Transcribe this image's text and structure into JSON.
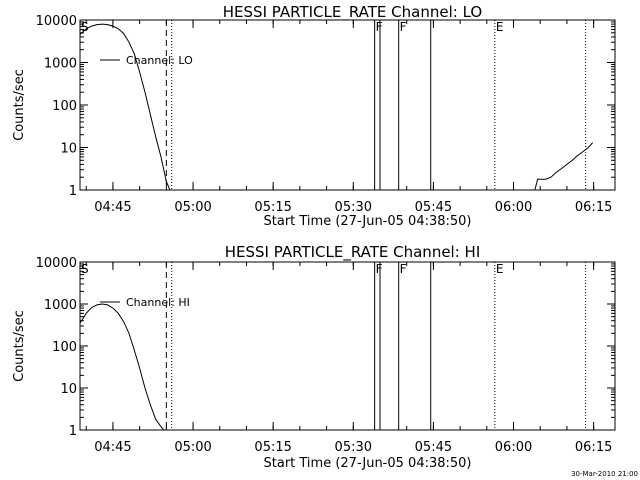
{
  "chart_data": [
    {
      "type": "line",
      "title": "HESSI PARTICLE_RATE Channel: LO",
      "xlabel": "Start Time (27-Jun-05 04:38:50)",
      "ylabel": "Counts/sec",
      "yscale": "log",
      "ylim": [
        1,
        10000
      ],
      "xlim": [
        "04:38:50",
        "06:19:00"
      ],
      "x_ticks": [
        "04:45",
        "05:00",
        "05:15",
        "05:30",
        "05:45",
        "06:00",
        "06:15"
      ],
      "y_ticks": [
        "1",
        "10",
        "100",
        "1000",
        "10000"
      ],
      "legend": {
        "position": "top-left",
        "entries": [
          "Channel: LO"
        ]
      },
      "series": [
        {
          "name": "Channel: LO",
          "color": "#000000",
          "segments": [
            {
              "x": [
                "04:38:50",
                "04:40:00",
                "04:41:00",
                "04:42:00",
                "04:43:00",
                "04:44:00",
                "04:45:00",
                "04:46:00",
                "04:47:00",
                "04:48:00",
                "04:49:00",
                "04:50:00",
                "04:51:00",
                "04:52:00",
                "04:53:00",
                "04:54:00",
                "04:55:00",
                "04:55:40"
              ],
              "y": [
                4500,
                6200,
                7200,
                7800,
                8000,
                7800,
                7200,
                6200,
                4800,
                3000,
                1600,
                600,
                200,
                60,
                18,
                6,
                1.6,
                1
              ]
            },
            {
              "x": [
                "06:04:00",
                "06:04:30",
                "06:05:00",
                "06:06:00",
                "06:07:00",
                "06:08:00",
                "06:09:00",
                "06:10:00",
                "06:11:00",
                "06:12:00",
                "06:13:00",
                "06:14:00",
                "06:14:50"
              ],
              "y": [
                1,
                1.8,
                1.8,
                1.8,
                2.0,
                2.6,
                3.2,
                4.0,
                5.0,
                6.5,
                8.0,
                10,
                13
              ]
            }
          ]
        }
      ],
      "vertical_markers": [
        {
          "time": "04:38:50",
          "style": "dotted",
          "label": "S"
        },
        {
          "time": "04:55:00",
          "style": "dashed",
          "label": ""
        },
        {
          "time": "04:56:00",
          "style": "dotted",
          "label": ""
        },
        {
          "time": "05:34:00",
          "style": "solid",
          "label": "F"
        },
        {
          "time": "05:35:00",
          "style": "solid",
          "label": ""
        },
        {
          "time": "05:38:30",
          "style": "solid",
          "label": "F"
        },
        {
          "time": "05:44:30",
          "style": "solid",
          "label": ""
        },
        {
          "time": "05:56:30",
          "style": "dotted",
          "label": "E"
        },
        {
          "time": "06:13:30",
          "style": "dotted",
          "label": ""
        }
      ]
    },
    {
      "type": "line",
      "title": "HESSI PARTICLE_RATE Channel: HI",
      "xlabel": "Start Time (27-Jun-05 04:38:50)",
      "ylabel": "Counts/sec",
      "yscale": "log",
      "ylim": [
        1,
        10000
      ],
      "xlim": [
        "04:38:50",
        "06:19:00"
      ],
      "x_ticks": [
        "04:45",
        "05:00",
        "05:15",
        "05:30",
        "05:45",
        "06:00",
        "06:15"
      ],
      "y_ticks": [
        "1",
        "10",
        "100",
        "1000",
        "10000"
      ],
      "legend": {
        "position": "top-left",
        "entries": [
          "Channel: HI"
        ]
      },
      "series": [
        {
          "name": "Channel: HI",
          "color": "#000000",
          "segments": [
            {
              "x": [
                "04:38:50",
                "04:40:00",
                "04:41:00",
                "04:42:00",
                "04:43:00",
                "04:44:00",
                "04:45:00",
                "04:46:00",
                "04:47:00",
                "04:48:00",
                "04:49:00",
                "04:50:00",
                "04:51:00",
                "04:52:00",
                "04:53:00",
                "04:54:00",
                "04:54:30"
              ],
              "y": [
                350,
                600,
                820,
                950,
                1000,
                950,
                800,
                600,
                380,
                200,
                80,
                30,
                10,
                4,
                1.8,
                1.2,
                1
              ]
            }
          ]
        }
      ],
      "vertical_markers": [
        {
          "time": "04:38:50",
          "style": "dotted",
          "label": "S"
        },
        {
          "time": "04:55:00",
          "style": "dashed",
          "label": ""
        },
        {
          "time": "04:56:00",
          "style": "dotted",
          "label": ""
        },
        {
          "time": "05:34:00",
          "style": "solid",
          "label": "F"
        },
        {
          "time": "05:35:00",
          "style": "solid",
          "label": ""
        },
        {
          "time": "05:38:30",
          "style": "solid",
          "label": "F"
        },
        {
          "time": "05:44:30",
          "style": "solid",
          "label": ""
        },
        {
          "time": "05:56:30",
          "style": "dotted",
          "label": "E"
        },
        {
          "time": "06:13:30",
          "style": "dotted",
          "label": ""
        }
      ]
    }
  ],
  "footer": {
    "timestamp": "30-Mar-2010 21:00"
  }
}
